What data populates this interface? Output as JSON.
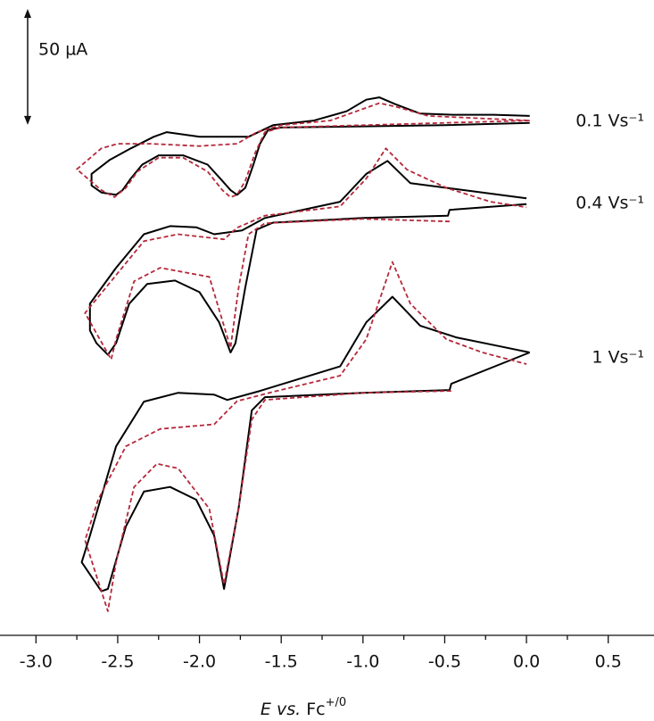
{
  "chart_data": {
    "type": "line",
    "x_label": {
      "symbol": "E",
      "text": "vs.",
      "unit": "Fc",
      "superscript": "+/0"
    },
    "scale_bar": {
      "value": 50,
      "label": "50 µA"
    },
    "xlim": [
      -3.22,
      0.78
    ],
    "ylim": [
      0,
      274
    ],
    "xticks": [
      {
        "value": -3,
        "label": "-3.0"
      },
      {
        "value": -2.5,
        "label": "-2.5"
      },
      {
        "value": -2,
        "label": "-2.0"
      },
      {
        "value": -1.5,
        "label": "-1.5"
      },
      {
        "value": -1,
        "label": "-1.0"
      },
      {
        "value": -0.5,
        "label": "-0.5"
      },
      {
        "value": 0,
        "label": "0.0"
      },
      {
        "value": 0.5,
        "label": "0.5"
      }
    ],
    "xminor": [
      -2.75,
      -2.25,
      -1.75,
      -1.25,
      -0.75,
      -0.25,
      0.25
    ],
    "series": [
      {
        "name": "0.1 Vs⁻¹",
        "color": "#000000",
        "x": [
          0.02,
          -0.5,
          -1.0,
          -1.5,
          -1.58,
          -1.63,
          -1.67,
          -1.72,
          -1.77,
          -1.81,
          -1.86,
          -1.95,
          -2.1,
          -2.25,
          -2.35,
          -2.42,
          -2.47,
          -2.51,
          -2.6,
          -2.66,
          -2.66,
          -2.55,
          -2.42,
          -2.28,
          -2.2,
          -2.0,
          -1.7,
          -1.55,
          -1.3,
          -1.1,
          -0.98,
          -0.9,
          -0.8,
          -0.65,
          -0.45,
          -0.2,
          0.02
        ],
        "values": [
          221,
          220,
          219.5,
          219,
          218,
          212,
          203,
          193,
          190,
          192,
          196,
          203,
          207,
          207,
          203,
          197,
          192,
          190,
          191,
          194,
          199,
          205,
          210,
          215,
          217,
          215,
          215,
          220,
          222,
          226,
          231,
          232,
          229,
          225,
          224.5,
          224.5,
          224
        ]
      },
      {
        "color": "#b5283a",
        "dashed": true,
        "x": [
          0.02,
          -0.5,
          -1.0,
          -1.5,
          -1.6,
          -1.66,
          -1.72,
          -1.77,
          -1.81,
          -1.86,
          -1.95,
          -2.1,
          -2.25,
          -2.38,
          -2.45,
          -2.52,
          -2.6,
          -2.75,
          -2.6,
          -2.5,
          -2.3,
          -2.0,
          -1.77,
          -1.65,
          -1.5,
          -1.2,
          -1.0,
          -0.9,
          -0.8,
          -0.6,
          -0.3,
          0.02
        ],
        "values": [
          222,
          221,
          220,
          219,
          217,
          208,
          196,
          190,
          189,
          192,
          200,
          206,
          206,
          200,
          193,
          189,
          192,
          201,
          210,
          212,
          212,
          211,
          212,
          217,
          220,
          222,
          227,
          229.5,
          228,
          224,
          223,
          222
        ]
      },
      {
        "name": "0.4 Vs⁻¹",
        "color": "#000000",
        "x": [
          0.0,
          -0.47,
          -0.48,
          -1.0,
          -1.55,
          -1.65,
          -1.72,
          -1.78,
          -1.81,
          -1.88,
          -2.0,
          -2.15,
          -2.32,
          -2.43,
          -2.51,
          -2.56,
          -2.63,
          -2.67,
          -2.67,
          -2.51,
          -2.34,
          -2.18,
          -2.02,
          -1.91,
          -1.74,
          -1.6,
          -1.14,
          -0.98,
          -0.85,
          -0.71,
          -0.49,
          -0.27,
          0.0
        ],
        "values": [
          186,
          183.5,
          181,
          180,
          178,
          175,
          150,
          126,
          122,
          135,
          148,
          153,
          151.5,
          143,
          126,
          121,
          126,
          131.5,
          143,
          158.5,
          173,
          176.5,
          176,
          173,
          174.6,
          180,
          187,
          199,
          204.6,
          195,
          193,
          191,
          188.5
        ]
      },
      {
        "color": "#b5283a",
        "dashed": true,
        "x": [
          -0.47,
          -1.0,
          -1.6,
          -1.7,
          -1.76,
          -1.81,
          -1.94,
          -2.24,
          -2.4,
          -2.51,
          -2.54,
          -2.7,
          -2.56,
          -2.34,
          -2.13,
          -1.85,
          -1.77,
          -1.6,
          -1.14,
          -0.98,
          -0.86,
          -0.73,
          -0.49,
          -0.22,
          0.0
        ],
        "values": [
          178.5,
          179.6,
          177.7,
          173,
          150,
          124,
          154.6,
          158.5,
          152.7,
          127.7,
          119,
          139,
          151,
          170,
          173,
          170.8,
          175.8,
          181,
          185,
          197,
          210,
          200.8,
          193,
          187,
          184.6
        ]
      },
      {
        "name": "1 Vs⁻¹",
        "color": "#000000",
        "x": [
          0.02,
          -0.46,
          -0.47,
          -1.0,
          -1.6,
          -1.68,
          -1.76,
          -1.85,
          -1.91,
          -2.02,
          -2.18,
          -2.34,
          -2.45,
          -2.56,
          -2.6,
          -2.72,
          -2.67,
          -2.51,
          -2.34,
          -2.13,
          -1.91,
          -1.83,
          -1.63,
          -1.14,
          -0.98,
          -0.82,
          -0.65,
          -0.43,
          -0.16,
          0.02
        ],
        "values": [
          122,
          108.5,
          105.8,
          104.6,
          102.7,
          97,
          55,
          20,
          43,
          58.5,
          64,
          62,
          47,
          20,
          19,
          31.5,
          43,
          81.5,
          100.8,
          104.6,
          103.8,
          101.5,
          105.4,
          116,
          135,
          146,
          133.5,
          128.5,
          124.6,
          122
        ]
      },
      {
        "color": "#b5283a",
        "dashed": true,
        "x": [
          -0.46,
          -1.0,
          -1.6,
          -1.68,
          -1.76,
          -1.85,
          -1.94,
          -2.13,
          -2.26,
          -2.4,
          -2.51,
          -2.56,
          -2.7,
          -2.62,
          -2.45,
          -2.24,
          -1.91,
          -1.77,
          -1.55,
          -1.14,
          -0.98,
          -0.82,
          -0.71,
          -0.49,
          -0.27,
          0.0
        ],
        "values": [
          105.4,
          104.6,
          101.5,
          93,
          55,
          22,
          54.6,
          72,
          74,
          64,
          31.5,
          10.4,
          41,
          58.5,
          81.5,
          89,
          91,
          101,
          105,
          112,
          127.7,
          161,
          143,
          127.7,
          122,
          117
        ]
      }
    ]
  }
}
